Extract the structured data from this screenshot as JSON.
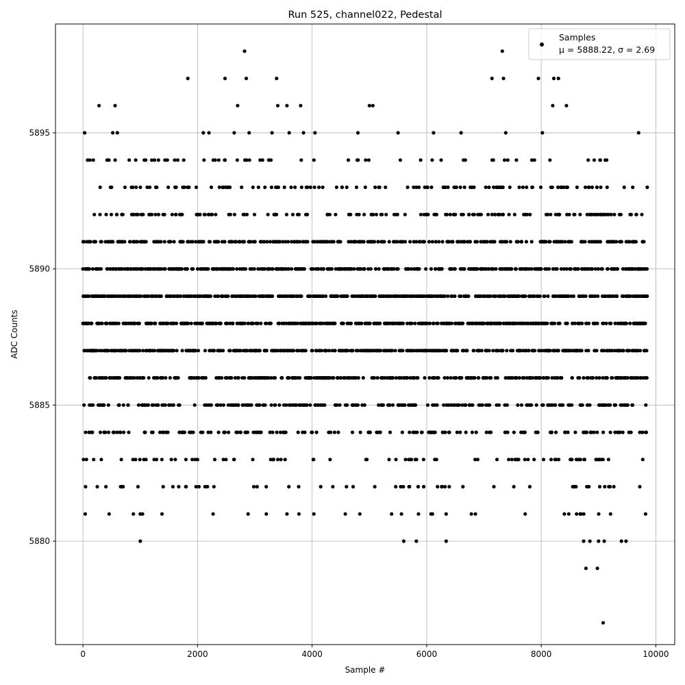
{
  "chart_data": {
    "type": "scatter",
    "title": "Run 525, channel022, Pedestal",
    "xlabel": "Sample #",
    "ylabel": "ADC Counts",
    "xlim": [
      -480,
      10330
    ],
    "ylim": [
      5876.2,
      5899.0
    ],
    "xticks": [
      0,
      2000,
      4000,
      6000,
      8000,
      10000
    ],
    "yticks": [
      5880,
      5885,
      5890,
      5895
    ],
    "grid": true,
    "legend": {
      "placement": "upper right",
      "entries": [
        "Samples",
        "μ = 5888.22, σ = 2.69"
      ]
    },
    "statistics": {
      "mean": 5888.22,
      "sigma": 2.69
    },
    "marker_color": "#000000",
    "sample_count": 9850,
    "series": [
      {
        "name": "Samples",
        "points": [
          [
            0,
            5888
          ],
          [
            15,
            5891
          ],
          [
            30,
            5895
          ],
          [
            45,
            5884
          ],
          [
            60,
            5883
          ],
          [
            80,
            5894
          ],
          [
            95,
            5890
          ],
          [
            110,
            5887
          ],
          [
            180,
            5894
          ],
          [
            220,
            5891
          ],
          [
            250,
            5882
          ],
          [
            280,
            5896
          ],
          [
            300,
            5893
          ],
          [
            320,
            5883
          ],
          [
            360,
            5885
          ],
          [
            400,
            5882
          ],
          [
            420,
            5894
          ],
          [
            480,
            5888
          ],
          [
            520,
            5895
          ],
          [
            560,
            5896
          ],
          [
            600,
            5895
          ],
          [
            640,
            5891
          ],
          [
            700,
            5882
          ],
          [
            880,
            5881
          ],
          [
            920,
            5894
          ],
          [
            960,
            5882
          ],
          [
            1000,
            5880
          ],
          [
            1040,
            5881
          ],
          [
            1100,
            5883
          ],
          [
            1200,
            5894
          ],
          [
            1380,
            5881
          ],
          [
            1400,
            5882
          ],
          [
            1600,
            5894
          ],
          [
            1800,
            5882
          ],
          [
            1830,
            5897
          ],
          [
            2000,
            5883
          ],
          [
            2100,
            5895
          ],
          [
            2130,
            5882
          ],
          [
            2200,
            5895
          ],
          [
            2300,
            5883
          ],
          [
            2480,
            5897
          ],
          [
            2640,
            5895
          ],
          [
            2700,
            5896
          ],
          [
            2820,
            5898
          ],
          [
            2850,
            5897
          ],
          [
            2900,
            5895
          ],
          [
            3200,
            5882
          ],
          [
            3300,
            5895
          ],
          [
            3380,
            5897
          ],
          [
            3400,
            5896
          ],
          [
            3560,
            5896
          ],
          [
            3600,
            5895
          ],
          [
            3770,
            5881
          ],
          [
            3800,
            5896
          ],
          [
            3850,
            5895
          ],
          [
            4030,
            5881
          ],
          [
            4050,
            5895
          ],
          [
            4150,
            5882
          ],
          [
            4580,
            5881
          ],
          [
            4600,
            5882
          ],
          [
            4800,
            5895
          ],
          [
            5000,
            5896
          ],
          [
            5060,
            5896
          ],
          [
            5100,
            5893
          ],
          [
            5500,
            5895
          ],
          [
            5560,
            5881
          ],
          [
            5600,
            5880
          ],
          [
            5700,
            5882
          ],
          [
            5820,
            5880
          ],
          [
            6100,
            5881
          ],
          [
            6120,
            5895
          ],
          [
            6340,
            5880
          ],
          [
            6340,
            5881
          ],
          [
            6600,
            5895
          ],
          [
            6780,
            5881
          ],
          [
            6850,
            5881
          ],
          [
            7140,
            5897
          ],
          [
            7320,
            5898
          ],
          [
            7340,
            5897
          ],
          [
            7380,
            5895
          ],
          [
            7720,
            5881
          ],
          [
            7800,
            5882
          ],
          [
            7950,
            5897
          ],
          [
            8020,
            5895
          ],
          [
            8200,
            5896
          ],
          [
            8220,
            5897
          ],
          [
            8300,
            5897
          ],
          [
            8440,
            5896
          ],
          [
            8480,
            5881
          ],
          [
            8600,
            5882
          ],
          [
            8680,
            5881
          ],
          [
            8740,
            5880
          ],
          [
            8780,
            5879
          ],
          [
            8850,
            5880
          ],
          [
            8980,
            5879
          ],
          [
            9000,
            5880
          ],
          [
            9080,
            5877
          ],
          [
            9100,
            5880
          ],
          [
            9150,
            5893
          ],
          [
            9200,
            5882
          ],
          [
            9400,
            5880
          ],
          [
            9480,
            5880
          ],
          [
            9700,
            5895
          ],
          [
            9720,
            5882
          ],
          [
            9820,
            5881
          ],
          [
            9850,
            5893
          ]
        ]
      }
    ]
  }
}
